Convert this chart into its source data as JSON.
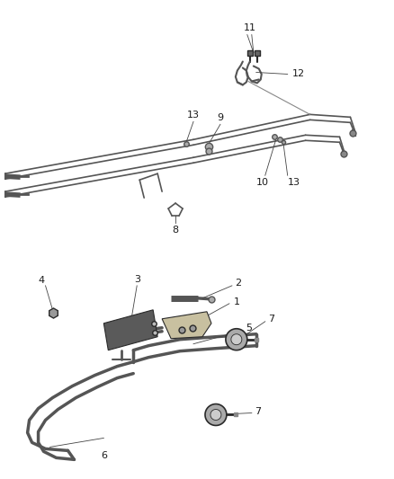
{
  "background_color": "#ffffff",
  "fig_width": 4.38,
  "fig_height": 5.33,
  "dpi": 100,
  "line_color": "#2a2a2a",
  "label_color": "#1a1a1a",
  "label_fontsize": 8.0,
  "pipe_color": "#555555",
  "pipe_lw": 1.4,
  "hose_lw": 7.0,
  "hose_color": "#888888",
  "hose_inner_color": "#ffffff"
}
